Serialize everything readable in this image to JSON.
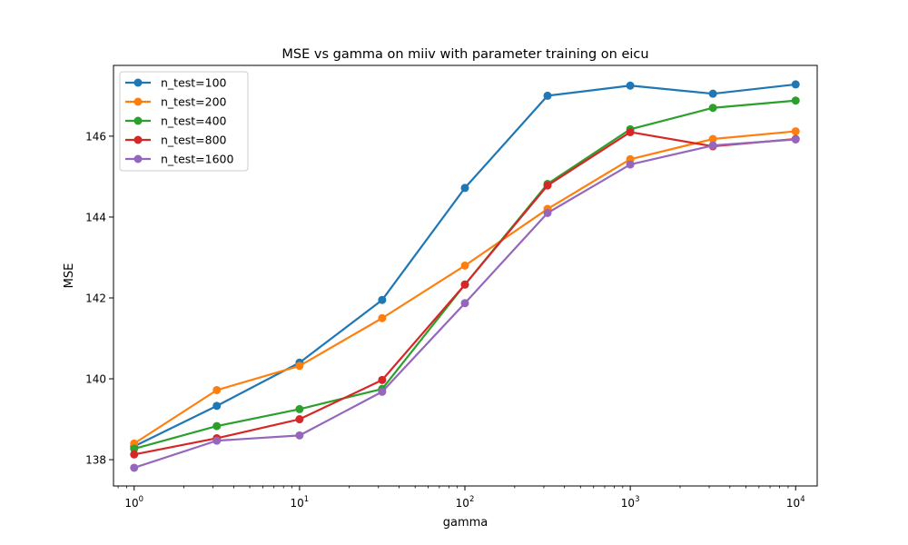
{
  "chart_data": {
    "type": "line",
    "title": "MSE vs gamma on miiv with parameter training on eicu",
    "xlabel": "gamma",
    "ylabel": "MSE",
    "x_scale": "log",
    "xlim": [
      0.75,
      13500
    ],
    "ylim": [
      137.35,
      147.75
    ],
    "x": [
      1,
      3.16,
      10,
      31.6,
      100,
      316,
      1000,
      3160,
      10000
    ],
    "x_ticks": [
      {
        "value": 1,
        "base": "10",
        "exp": "0"
      },
      {
        "value": 10,
        "base": "10",
        "exp": "1"
      },
      {
        "value": 100,
        "base": "10",
        "exp": "2"
      },
      {
        "value": 1000,
        "base": "10",
        "exp": "3"
      },
      {
        "value": 10000,
        "base": "10",
        "exp": "4"
      }
    ],
    "y_ticks": [
      138,
      140,
      142,
      144,
      146
    ],
    "grid": false,
    "legend_position": "upper-left",
    "series": [
      {
        "name": "n_test=100",
        "color": "#1f77b4",
        "values": [
          138.33,
          139.33,
          140.4,
          141.95,
          144.72,
          147.0,
          147.25,
          147.05,
          147.28
        ]
      },
      {
        "name": "n_test=200",
        "color": "#ff7f0e",
        "values": [
          138.4,
          139.72,
          140.32,
          141.5,
          142.8,
          144.2,
          145.43,
          145.93,
          146.12
        ]
      },
      {
        "name": "n_test=400",
        "color": "#2ca02c",
        "values": [
          138.27,
          138.83,
          139.25,
          139.75,
          142.33,
          144.82,
          146.17,
          146.7,
          146.88
        ]
      },
      {
        "name": "n_test=800",
        "color": "#d62728",
        "values": [
          138.13,
          138.53,
          139.0,
          139.97,
          142.33,
          144.78,
          146.1,
          145.75,
          145.93
        ]
      },
      {
        "name": "n_test=1600",
        "color": "#9467bd",
        "values": [
          137.8,
          138.47,
          138.6,
          139.68,
          141.87,
          144.1,
          145.3,
          145.77,
          145.92
        ]
      }
    ]
  }
}
